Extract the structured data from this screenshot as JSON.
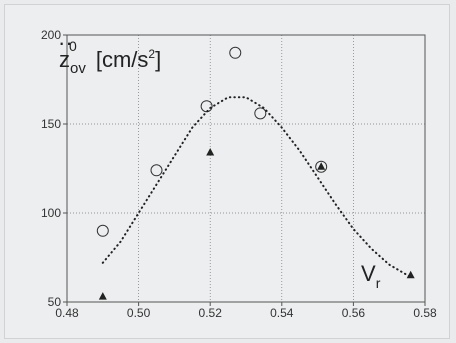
{
  "chart_data": {
    "type": "scatter",
    "title": "",
    "ylabel": {
      "main": "z",
      "accent": "··",
      "superscript": "0",
      "subscript": "ov",
      "unit_open": "[cm/s",
      "unit_power": "2",
      "unit_close": "]"
    },
    "xlabel": {
      "main": "V",
      "subscript": "r"
    },
    "xlim": [
      0.48,
      0.58
    ],
    "ylim": [
      50,
      200
    ],
    "x_ticks": [
      0.48,
      0.5,
      0.52,
      0.54,
      0.56,
      0.58
    ],
    "x_tick_labels": [
      "0.48",
      "0.50",
      "0.52",
      "0.54",
      "0.56",
      "0.58"
    ],
    "y_ticks": [
      50,
      100,
      150,
      200
    ],
    "y_tick_labels": [
      "50",
      "100",
      "150",
      "200"
    ],
    "grid": true,
    "series": [
      {
        "marker": "circle-open",
        "color": "#333333",
        "points": [
          [
            0.49,
            90
          ],
          [
            0.505,
            124
          ],
          [
            0.519,
            160
          ],
          [
            0.527,
            190
          ],
          [
            0.534,
            156
          ],
          [
            0.551,
            126
          ]
        ]
      },
      {
        "marker": "triangle-filled",
        "color": "#222222",
        "points": [
          [
            0.49,
            53
          ],
          [
            0.52,
            134
          ],
          [
            0.551,
            126
          ],
          [
            0.576,
            65
          ]
        ]
      },
      {
        "marker": "dotted-line",
        "color": "#222222",
        "points": [
          [
            0.49,
            72
          ],
          [
            0.495,
            84
          ],
          [
            0.5,
            100
          ],
          [
            0.505,
            116
          ],
          [
            0.51,
            132
          ],
          [
            0.515,
            148
          ],
          [
            0.52,
            159
          ],
          [
            0.525,
            165
          ],
          [
            0.53,
            165
          ],
          [
            0.535,
            159
          ],
          [
            0.54,
            148
          ],
          [
            0.545,
            135
          ],
          [
            0.55,
            120
          ],
          [
            0.555,
            105
          ],
          [
            0.56,
            91
          ],
          [
            0.565,
            80
          ],
          [
            0.57,
            71
          ],
          [
            0.576,
            64
          ]
        ]
      }
    ]
  }
}
